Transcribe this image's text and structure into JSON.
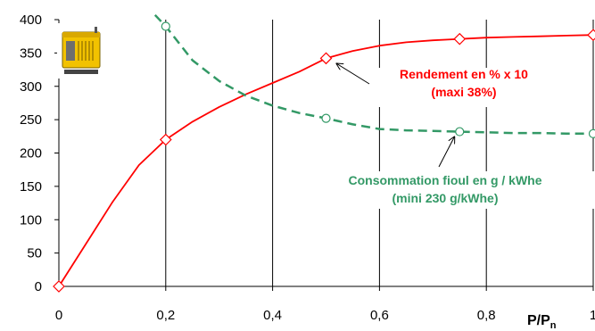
{
  "chart_data": {
    "type": "line",
    "xlim": [
      0,
      1
    ],
    "ylim": [
      0,
      400
    ],
    "x_ticks": [
      "0",
      "0,2",
      "0,4",
      "0,6",
      "0,8",
      "1"
    ],
    "y_ticks": [
      "0",
      "50",
      "100",
      "150",
      "200",
      "250",
      "300",
      "350",
      "400"
    ],
    "xlabel": "P/P",
    "xlabel_sub": "n",
    "grid": "vertical",
    "series": [
      {
        "color": "#ff0000",
        "line": "solid",
        "marker": "diamond",
        "x": [
          0,
          0.2,
          0.5,
          0.75,
          1
        ],
        "values": [
          0,
          220,
          342,
          371,
          377
        ],
        "curve_x": [
          0,
          0.05,
          0.1,
          0.15,
          0.2,
          0.25,
          0.3,
          0.35,
          0.4,
          0.45,
          0.5,
          0.55,
          0.6,
          0.65,
          0.7,
          0.75,
          0.8,
          0.85,
          0.9,
          0.95,
          1
        ],
        "curve_y": [
          0,
          63,
          126,
          182,
          220,
          247,
          269,
          288,
          305,
          322,
          342,
          353,
          361,
          366,
          369,
          371,
          373,
          374,
          375,
          376,
          377
        ]
      },
      {
        "color": "#339966",
        "line": "dashed",
        "marker": "circle",
        "x": [
          0.2,
          0.5,
          0.75,
          1
        ],
        "values": [
          390,
          252,
          232,
          229
        ],
        "curve_x": [
          0.18,
          0.2,
          0.25,
          0.3,
          0.35,
          0.4,
          0.45,
          0.5,
          0.55,
          0.6,
          0.65,
          0.7,
          0.75,
          0.8,
          0.85,
          0.9,
          0.95,
          1
        ],
        "curve_y": [
          407,
          390,
          339,
          308,
          286,
          271,
          260,
          252,
          243,
          236,
          234,
          233,
          232,
          231,
          230,
          230,
          229,
          229
        ]
      }
    ],
    "annotations": [
      {
        "lines": [
          "Rendement en % x 10",
          "(maxi 38%)"
        ],
        "color": "#ff0000",
        "target": [
          0.51,
          342
        ]
      },
      {
        "lines": [
          "Consommation fioul en g / kWhe",
          "(mini 230 g/kWhe)"
        ],
        "color": "#339966",
        "target": [
          0.73,
          232
        ]
      }
    ]
  },
  "image": {
    "subject": "generator-icon"
  }
}
